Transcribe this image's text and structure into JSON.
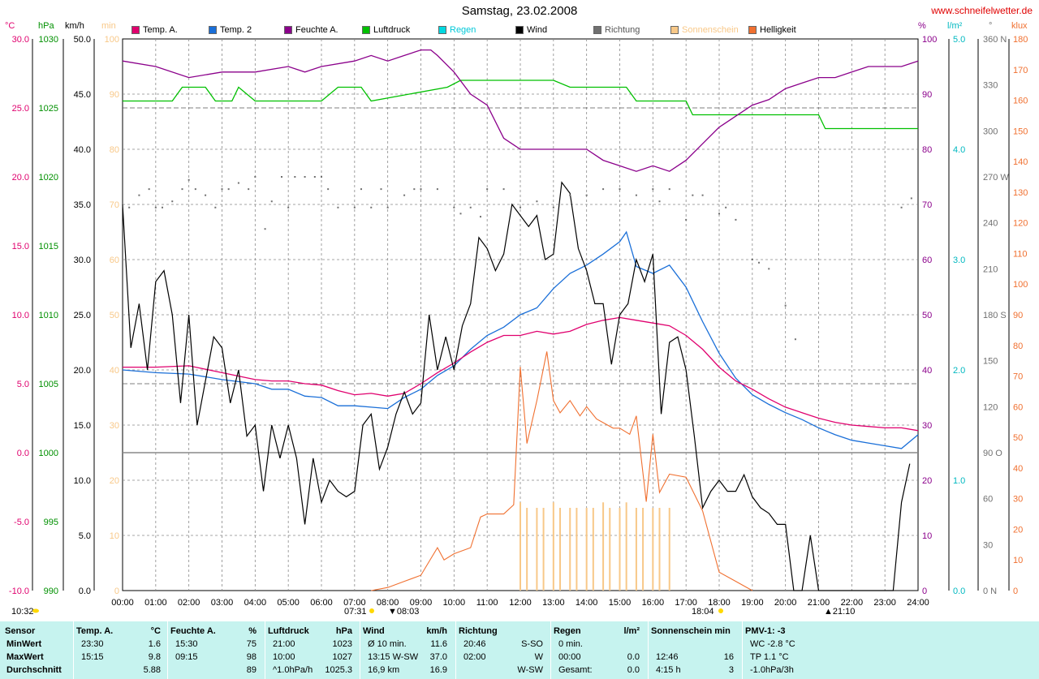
{
  "title": "Samstag, 23.02.2008",
  "site": "www.schneifelwetter.de",
  "units": {
    "temp": "°C",
    "pressure": "hPa",
    "wind": "km/h",
    "sun": "min",
    "humidity": "%",
    "rain": "l/m²",
    "direction": "°",
    "lux": "klux"
  },
  "colors": {
    "temp_a": "#e0006e",
    "temp_2": "#1a6fd8",
    "feuchte": "#8b008b",
    "luftdruck": "#00c000",
    "regen": "#00d8e0",
    "wind": "#000000",
    "richtung": "#707070",
    "sonnenschein": "#f8c888",
    "helligkeit": "#f07030",
    "table_bg": "#c6f3ef"
  },
  "legend": [
    {
      "label": "Temp. A.",
      "color": "#e0006e"
    },
    {
      "label": "Temp. 2",
      "color": "#1a6fd8"
    },
    {
      "label": "Feuchte A.",
      "color": "#8b008b"
    },
    {
      "label": "Luftdruck",
      "color": "#00c000"
    },
    {
      "label": "Regen",
      "color": "#00d8e0"
    },
    {
      "label": "Wind",
      "color": "#000000"
    },
    {
      "label": "Richtung",
      "color": "#707070"
    },
    {
      "label": "Sonnenschein",
      "color": "#f8c888"
    },
    {
      "label": "Helligkeit",
      "color": "#f07030"
    }
  ],
  "axes": {
    "temp": [
      "30.0",
      "25.0",
      "20.0",
      "15.0",
      "10.0",
      "5.0",
      "0.0",
      "-5.0",
      "-10.0"
    ],
    "pressure": [
      "1030",
      "1025",
      "1020",
      "1015",
      "1010",
      "1005",
      "1000",
      "995",
      "990"
    ],
    "wind": [
      "50.0",
      "45.0",
      "40.0",
      "35.0",
      "30.0",
      "25.0",
      "20.0",
      "15.0",
      "10.0",
      "5.0",
      "0.0"
    ],
    "sun": [
      "100",
      "90",
      "80",
      "70",
      "60",
      "50",
      "40",
      "30",
      "20",
      "10",
      "0"
    ],
    "humidity": [
      "100",
      "90",
      "80",
      "70",
      "60",
      "50",
      "40",
      "30",
      "20",
      "10",
      "0"
    ],
    "rain": [
      "5.0",
      "4.0",
      "3.0",
      "2.0",
      "1.0",
      "0.0"
    ],
    "direction": [
      "360 N",
      "330",
      "300",
      "270 W",
      "240",
      "210",
      "180 S",
      "150",
      "120",
      "90 O",
      "60",
      "30",
      "0 N"
    ],
    "lux": [
      "180",
      "170",
      "160",
      "150",
      "140",
      "130",
      "120",
      "110",
      "100",
      "90",
      "80",
      "70",
      "60",
      "50",
      "40",
      "30",
      "20",
      "10",
      "0"
    ],
    "time": [
      "00:00",
      "01:00",
      "02:00",
      "03:00",
      "04:00",
      "05:00",
      "06:00",
      "07:00",
      "08:00",
      "09:00",
      "10:00",
      "11:00",
      "12:00",
      "13:00",
      "14:00",
      "15:00",
      "16:00",
      "17:00",
      "18:00",
      "19:00",
      "20:00",
      "21:00",
      "22:00",
      "23:00",
      "24:00"
    ]
  },
  "markers": {
    "sunrise": "07:31",
    "sunset": "18:04",
    "moonrise": "10:32",
    "sunrise_note": "08:03",
    "moonset_note": "21:10"
  },
  "chart_data": {
    "type": "line",
    "x_unit": "hour",
    "xlim": [
      0,
      24
    ],
    "series": [
      {
        "name": "Temp. A.",
        "axis": "°C",
        "ylim": [
          -10,
          30
        ],
        "x": [
          0,
          1,
          2,
          3,
          4,
          4.5,
          5,
          5.5,
          6,
          6.5,
          7,
          7.5,
          8,
          8.5,
          9,
          9.5,
          10,
          10.5,
          11,
          11.5,
          12,
          12.5,
          13,
          13.5,
          14,
          14.5,
          15,
          15.5,
          16,
          16.5,
          17,
          17.5,
          18,
          18.5,
          19,
          19.5,
          20,
          20.5,
          21,
          21.5,
          22,
          22.5,
          23,
          23.5,
          24
        ],
        "values": [
          6.2,
          6.2,
          6.3,
          5.8,
          5.3,
          5.2,
          5.2,
          5.0,
          4.9,
          4.5,
          4.2,
          4.3,
          4.1,
          4.3,
          5.0,
          5.8,
          6.5,
          7.3,
          8.0,
          8.5,
          8.5,
          8.8,
          8.6,
          8.8,
          9.3,
          9.6,
          9.8,
          9.6,
          9.4,
          9.2,
          8.5,
          7.5,
          6.2,
          5.2,
          4.6,
          3.9,
          3.3,
          2.9,
          2.5,
          2.2,
          2.0,
          1.9,
          1.8,
          1.8,
          1.6
        ]
      },
      {
        "name": "Temp. 2",
        "axis": "°C",
        "ylim": [
          -10,
          30
        ],
        "x": [
          0,
          1,
          2,
          3,
          4,
          4.5,
          5,
          5.5,
          6,
          6.5,
          7,
          7.5,
          8,
          8.5,
          9,
          9.5,
          10,
          10.5,
          11,
          11.5,
          12,
          12.5,
          13,
          13.5,
          14,
          14.5,
          15,
          15.2,
          15.5,
          16,
          16.5,
          17,
          17.5,
          18,
          18.5,
          19,
          19.5,
          20,
          20.5,
          21,
          21.5,
          22,
          22.5,
          23,
          23.5,
          24
        ],
        "values": [
          6.0,
          5.8,
          5.7,
          5.3,
          5.0,
          4.6,
          4.6,
          4.1,
          4.0,
          3.4,
          3.4,
          3.3,
          3.2,
          4.0,
          4.6,
          5.6,
          6.3,
          7.5,
          8.5,
          9.1,
          10.0,
          10.5,
          11.9,
          13.0,
          13.6,
          14.4,
          15.3,
          16.0,
          13.5,
          13.0,
          13.6,
          12.0,
          9.5,
          7.2,
          5.4,
          4.2,
          3.5,
          2.9,
          2.4,
          1.8,
          1.3,
          0.9,
          0.7,
          0.5,
          0.3,
          1.3
        ]
      },
      {
        "name": "Feuchte A.",
        "axis": "%",
        "ylim": [
          0,
          100
        ],
        "x": [
          0,
          1,
          2,
          3,
          4,
          5,
          5.5,
          6,
          7,
          7.5,
          8,
          8.5,
          9,
          9.3,
          9.5,
          10,
          10.5,
          11,
          11.5,
          12,
          12.5,
          13,
          14,
          14.5,
          15,
          15.5,
          16,
          16.5,
          17,
          17.5,
          18,
          18.5,
          19,
          19.5,
          20,
          20.5,
          21,
          21.5,
          22,
          22.5,
          23,
          23.5,
          24
        ],
        "values": [
          96,
          95,
          93,
          94,
          94,
          95,
          94,
          95,
          96,
          97,
          96,
          97,
          98,
          98,
          97,
          94,
          90,
          88,
          82,
          80,
          80,
          80,
          80,
          78,
          77,
          76,
          77,
          76,
          78,
          81,
          84,
          86,
          88,
          89,
          91,
          92,
          93,
          93,
          94,
          95,
          95,
          95,
          96
        ]
      },
      {
        "name": "Luftdruck",
        "axis": "hPa",
        "ylim": [
          990,
          1030
        ],
        "x": [
          0,
          1.5,
          1.8,
          2.5,
          2.8,
          3.3,
          3.5,
          4,
          6,
          6.5,
          7.2,
          7.5,
          9.8,
          10.2,
          13,
          13.5,
          15.2,
          15.5,
          17,
          17.2,
          21,
          21.2,
          24
        ],
        "values": [
          1025.5,
          1025.5,
          1026.5,
          1026.5,
          1025.5,
          1025.5,
          1026.5,
          1025.5,
          1025.5,
          1026.5,
          1026.5,
          1025.5,
          1026.5,
          1027,
          1027,
          1026.5,
          1026.5,
          1025.5,
          1025.5,
          1024.5,
          1024.5,
          1023.5,
          1023.5
        ]
      },
      {
        "name": "Wind",
        "axis": "km/h",
        "ylim": [
          0,
          50
        ],
        "x": [
          0,
          0.25,
          0.5,
          0.75,
          1,
          1.25,
          1.5,
          1.75,
          2,
          2.25,
          2.5,
          2.75,
          3,
          3.25,
          3.5,
          3.75,
          4,
          4.25,
          4.5,
          4.75,
          5,
          5.25,
          5.5,
          5.75,
          6,
          6.25,
          6.5,
          6.75,
          7,
          7.25,
          7.5,
          7.75,
          8,
          8.25,
          8.5,
          8.75,
          9,
          9.25,
          9.5,
          9.75,
          10,
          10.25,
          10.5,
          10.75,
          11,
          11.25,
          11.5,
          11.75,
          12,
          12.25,
          12.5,
          12.75,
          13,
          13.25,
          13.5,
          13.75,
          14,
          14.25,
          14.5,
          14.75,
          15,
          15.25,
          15.5,
          15.75,
          16,
          16.25,
          16.5,
          16.75,
          17,
          17.25,
          17.5,
          17.75,
          18,
          18.25,
          18.5,
          18.75,
          19,
          19.25,
          19.5,
          19.75,
          20,
          20.25,
          20.5,
          20.75,
          21,
          21.25,
          21.5,
          21.75,
          22,
          22.25,
          22.5,
          22.75,
          23,
          23.25,
          23.5,
          23.75
        ],
        "values": [
          35,
          22,
          26,
          20,
          28,
          29,
          25,
          17,
          25,
          15,
          19,
          23,
          22,
          17,
          20,
          14,
          15,
          9,
          15,
          12,
          15,
          12,
          6,
          12,
          8,
          10,
          9,
          8.5,
          9,
          15,
          16,
          11,
          13,
          16,
          18,
          16,
          17,
          25,
          20,
          23,
          20,
          24,
          26,
          32,
          31,
          29,
          30.5,
          35,
          34,
          33,
          34,
          30,
          30.5,
          37,
          36,
          31,
          29,
          26,
          26,
          20.5,
          25,
          26,
          30,
          28,
          30.5,
          16,
          22.5,
          23,
          20,
          14,
          7.5,
          9,
          10,
          9,
          9,
          10.5,
          8.5,
          7.5,
          7,
          6,
          6,
          0,
          0,
          5,
          0,
          0,
          0,
          0,
          0,
          0,
          0,
          0,
          0,
          0,
          8,
          11.5
        ]
      },
      {
        "name": "Richtung",
        "axis": "°",
        "ylim": [
          0,
          360
        ],
        "type": "scatter",
        "x": [
          0.2,
          0.5,
          0.8,
          1,
          1.2,
          1.5,
          1.8,
          2,
          2.2,
          2.5,
          2.8,
          3,
          3.2,
          3.5,
          3.8,
          4,
          4.3,
          4.5,
          4.8,
          5,
          5.2,
          5.5,
          5.8,
          6,
          6.2,
          6.5,
          7,
          7.2,
          7.5,
          7.8,
          8,
          8.5,
          8.8,
          9,
          9.5,
          10,
          10.2,
          10.5,
          10.8,
          11,
          11.5,
          12,
          12.5,
          13,
          13.5,
          14,
          14.5,
          15,
          15.5,
          16,
          16.2,
          16.5,
          17,
          17.2,
          17.5,
          18,
          18.2,
          18.5,
          19,
          19.2,
          19.5,
          20,
          20.3,
          23.5,
          23.8
        ],
        "values": [
          250,
          258,
          262,
          250,
          250,
          254,
          262,
          268,
          262,
          258,
          250,
          262,
          262,
          266,
          262,
          270,
          236,
          254,
          270,
          250,
          270,
          270,
          270,
          270,
          262,
          250,
          250,
          262,
          250,
          262,
          250,
          258,
          262,
          262,
          262,
          250,
          246,
          250,
          244,
          262,
          262,
          250,
          254,
          250,
          258,
          258,
          262,
          262,
          258,
          262,
          254,
          262,
          242,
          258,
          258,
          246,
          250,
          242,
          216,
          214,
          210,
          186,
          164,
          250,
          256
        ]
      },
      {
        "name": "Helligkeit",
        "axis": "klux",
        "ylim": [
          0,
          180
        ],
        "x": [
          7.5,
          8,
          8.5,
          9,
          9.5,
          9.7,
          10,
          10.5,
          10.8,
          11,
          11.5,
          11.8,
          12,
          12.2,
          12.5,
          12.8,
          13,
          13.2,
          13.5,
          13.8,
          14,
          14.3,
          14.8,
          15,
          15.3,
          15.5,
          15.8,
          16,
          16.2,
          16.5,
          17,
          17.5,
          18,
          18.5,
          19
        ],
        "values": [
          0,
          1,
          3,
          5,
          14,
          10,
          12,
          14,
          24,
          25,
          25,
          28,
          73,
          48,
          62,
          78,
          62,
          58,
          62,
          57,
          60,
          56,
          53,
          53,
          51,
          57,
          29,
          51,
          32,
          38,
          37,
          26,
          6,
          3,
          0
        ]
      },
      {
        "name": "Sonnenschein",
        "axis": "min",
        "ylim": [
          0,
          100
        ],
        "type": "bar",
        "x": [
          12,
          12.2,
          12.5,
          12.7,
          13,
          13.2,
          13.5,
          13.7,
          14,
          14.2,
          14.5,
          14.7,
          15,
          15.2,
          15.5,
          15.7,
          16,
          16.2,
          16.5
        ],
        "values": [
          16,
          15,
          15,
          15,
          16,
          15,
          15,
          15,
          15,
          15,
          16,
          15,
          15,
          16,
          15,
          15,
          15,
          15,
          15
        ]
      }
    ]
  },
  "table": {
    "columns": [
      {
        "key": "sensor",
        "header": "Sensor",
        "rows": [
          "MinWert",
          "MaxWert",
          "Durchschnitt"
        ]
      },
      {
        "key": "temp",
        "header": "Temp. A.",
        "unit": "°C",
        "rows": [
          [
            "23:30",
            "1.6"
          ],
          [
            "15:15",
            "9.8"
          ],
          [
            "",
            "5.88"
          ]
        ]
      },
      {
        "key": "feuchte",
        "header": "Feuchte A.",
        "unit": "%",
        "rows": [
          [
            "15:30",
            "75"
          ],
          [
            "09:15",
            "98"
          ],
          [
            "",
            "89"
          ]
        ]
      },
      {
        "key": "luftdruck",
        "header": "Luftdruck",
        "unit": "hPa",
        "rows": [
          [
            "21:00",
            "1023"
          ],
          [
            "10:00",
            "1027"
          ],
          [
            "^1.0hPa/h",
            "1025.3"
          ]
        ]
      },
      {
        "key": "wind",
        "header": "Wind",
        "unit": "km/h",
        "rows": [
          [
            "Ø 10 min.",
            "11.6"
          ],
          [
            "13:15 W-SW",
            "37.0"
          ],
          [
            "16,9 km",
            "16.9"
          ]
        ]
      },
      {
        "key": "richtung",
        "header": "Richtung",
        "unit": "",
        "rows": [
          [
            "20:46",
            "S-SO"
          ],
          [
            "02:00",
            "W"
          ],
          [
            "",
            "W-SW"
          ]
        ]
      },
      {
        "key": "regen",
        "header": "Regen",
        "unit": "l/m²",
        "rows": [
          [
            "0 min.",
            ""
          ],
          [
            "00:00",
            "0.0"
          ],
          [
            "Gesamt:",
            "0.0"
          ]
        ]
      },
      {
        "key": "sonne",
        "header": "Sonnenschein min",
        "unit": "",
        "rows": [
          [
            "",
            ""
          ],
          [
            "12:46",
            "16"
          ],
          [
            "4:15 h",
            "3"
          ]
        ]
      },
      {
        "key": "pmv",
        "header": "PMV-1: -3",
        "unit": "",
        "rows": [
          [
            "WC -2.8 °C",
            ""
          ],
          [
            "TP 1.1 °C",
            ""
          ],
          [
            "-1.0hPa/3h",
            ""
          ]
        ]
      }
    ]
  }
}
